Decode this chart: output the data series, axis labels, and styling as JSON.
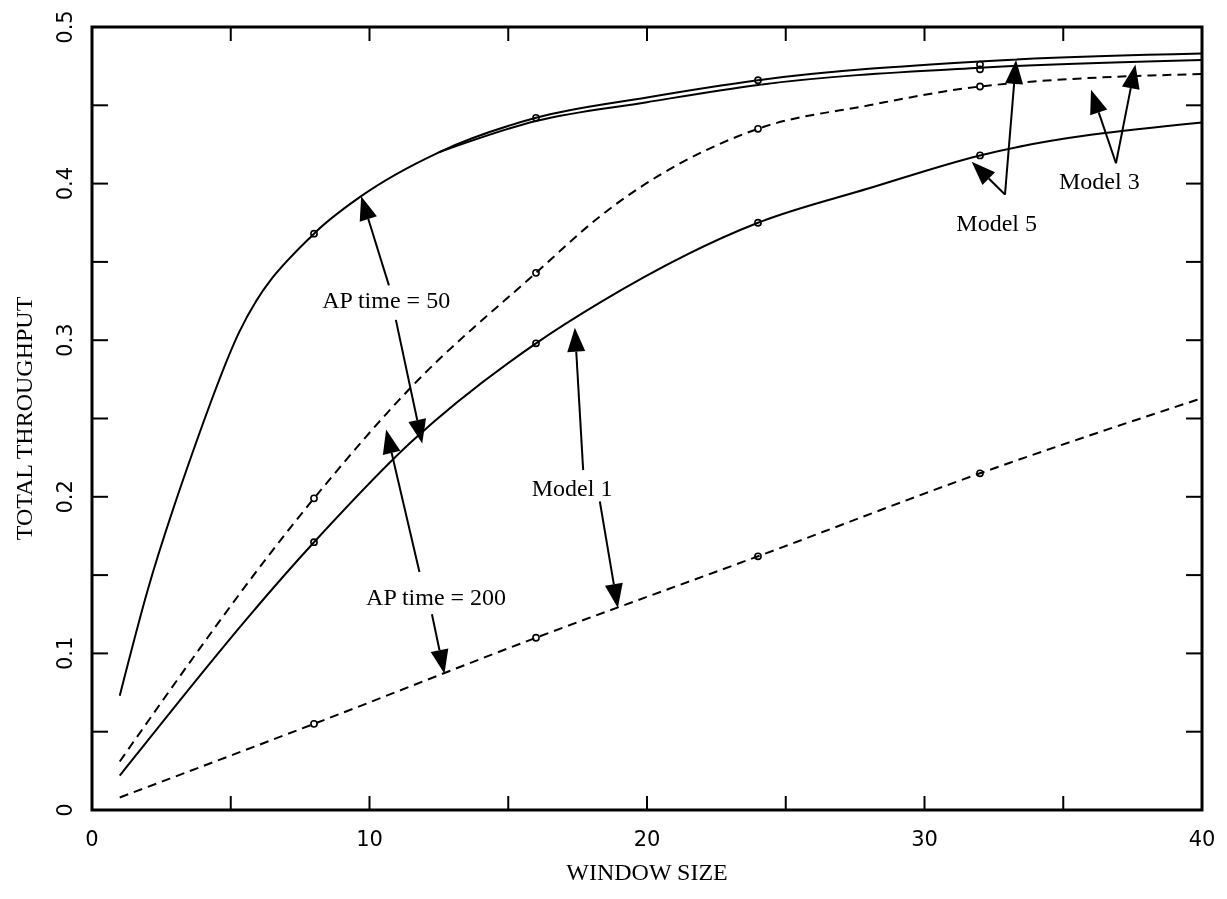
{
  "chart_data": {
    "type": "line",
    "xlabel": "WINDOW SIZE",
    "ylabel": "TOTAL THROUGHPUT",
    "xlim": [
      0,
      40
    ],
    "ylim": [
      0,
      0.5
    ],
    "xticks": [
      0,
      {
        "value": 5,
        "label": null
      },
      10,
      {
        "value": 15,
        "label": null
      },
      20,
      {
        "value": 25,
        "label": null
      },
      30,
      {
        "value": 35,
        "label": null
      },
      40
    ],
    "yticks": [
      0,
      {
        "value": 0.05,
        "label": null
      },
      0.1,
      {
        "value": 0.15,
        "label": null
      },
      0.2,
      {
        "value": 0.25,
        "label": null
      },
      0.3,
      {
        "value": 0.35,
        "label": null
      },
      0.4,
      {
        "value": 0.45,
        "label": null
      },
      0.5
    ],
    "grid": false,
    "series": [
      {
        "color": "#000000",
        "line_style": "solid",
        "x": [
          1,
          2,
          3.6,
          5.3,
          8,
          9.7,
          12.5,
          16,
          20,
          24,
          32,
          40
        ],
        "values": [
          0.073,
          0.14,
          0.227,
          0.305,
          0.368,
          0.392,
          0.42,
          0.442,
          0.455,
          0.466,
          0.478,
          0.483
        ]
      },
      {
        "color": "#000000",
        "line_style": "solid",
        "x": [
          12.5,
          16,
          20,
          24,
          32,
          40
        ],
        "values": [
          0.42,
          0.44,
          0.452,
          0.463,
          0.474,
          0.479
        ]
      },
      {
        "color": "#000000",
        "line_style": "dashed",
        "x": [
          1,
          8,
          11.5,
          16,
          18.3,
          24,
          28,
          32,
          40
        ],
        "values": [
          0.031,
          0.199,
          0.27,
          0.343,
          0.379,
          0.435,
          0.45,
          0.462,
          0.47
        ]
      },
      {
        "color": "#000000",
        "line_style": "solid",
        "x": [
          1,
          8,
          11.5,
          16,
          18.3,
          24,
          28,
          32,
          40
        ],
        "values": [
          0.022,
          0.171,
          0.235,
          0.298,
          0.324,
          0.375,
          0.397,
          0.418,
          0.439
        ]
      },
      {
        "color": "#000000",
        "line_style": "dashed",
        "x": [
          1,
          8,
          16,
          24,
          32,
          40
        ],
        "values": [
          0.008,
          0.055,
          0.11,
          0.162,
          0.215,
          0.263
        ]
      },
      {
        "type": "scatter",
        "color": "#000000",
        "marker": "circle",
        "x": [
          8,
          16,
          24,
          32,
          32,
          32,
          8,
          16,
          24,
          8,
          16,
          24,
          32,
          8,
          16,
          24,
          32
        ],
        "values": [
          0.368,
          0.442,
          0.466,
          0.476,
          0.473,
          0.462,
          0.199,
          0.343,
          0.435,
          0.171,
          0.298,
          0.375,
          0.418,
          0.055,
          0.11,
          0.162,
          0.215
        ]
      }
    ],
    "annotations": [
      "AP time = 50",
      "AP time = 200",
      "Model 1",
      {
        "text": "Model 5",
        "x": 31.7,
        "y": 0.414
      },
      "Model 3"
    ]
  }
}
